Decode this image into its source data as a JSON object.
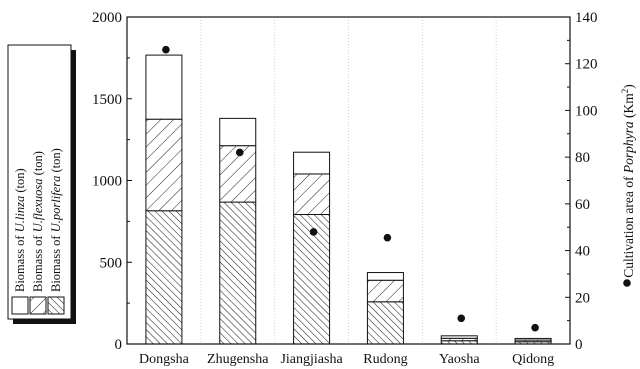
{
  "chart_data": {
    "type": "bar",
    "stacked": true,
    "categories": [
      "Dongsha",
      "Zhugensha",
      "Jiangjiasha",
      "Rudong",
      "Yaosha",
      "Qidong"
    ],
    "series": [
      {
        "name_prefix": "Biomass of ",
        "name_species": "U.porlifera",
        "name_suffix": " (ton)",
        "pattern": "dense-hatch",
        "values": [
          815,
          868,
          792,
          258,
          20,
          14
        ]
      },
      {
        "name_prefix": "Biomass of ",
        "name_species": "U.flexuosa",
        "name_suffix": " (ton)",
        "pattern": "sparse-hatch",
        "values": [
          560,
          345,
          248,
          132,
          15,
          10
        ]
      },
      {
        "name_prefix": "Biomass of ",
        "name_species": "U.linza",
        "name_suffix": " (ton)",
        "pattern": "white",
        "values": [
          392,
          167,
          133,
          47,
          15,
          10
        ]
      }
    ],
    "scatter_series": {
      "axis": "right",
      "marker": "filled-circle",
      "values": [
        126,
        82,
        48,
        45.5,
        11,
        7
      ]
    },
    "left_axis": {
      "ylim": [
        0,
        2000
      ],
      "ticks": [
        "0",
        "500",
        "1000",
        "1500",
        "2000"
      ]
    },
    "right_axis": {
      "label_prefix": "Cultivation area of ",
      "label_species": "Porphyra",
      "label_unit": " (Km",
      "label_sup": "2",
      "label_close": ")",
      "ylim": [
        0,
        140
      ],
      "ticks": [
        "0",
        "20",
        "40",
        "60",
        "80",
        "100",
        "120",
        "140"
      ]
    },
    "legend_placement": "left",
    "grid": "vertical-dotted"
  }
}
